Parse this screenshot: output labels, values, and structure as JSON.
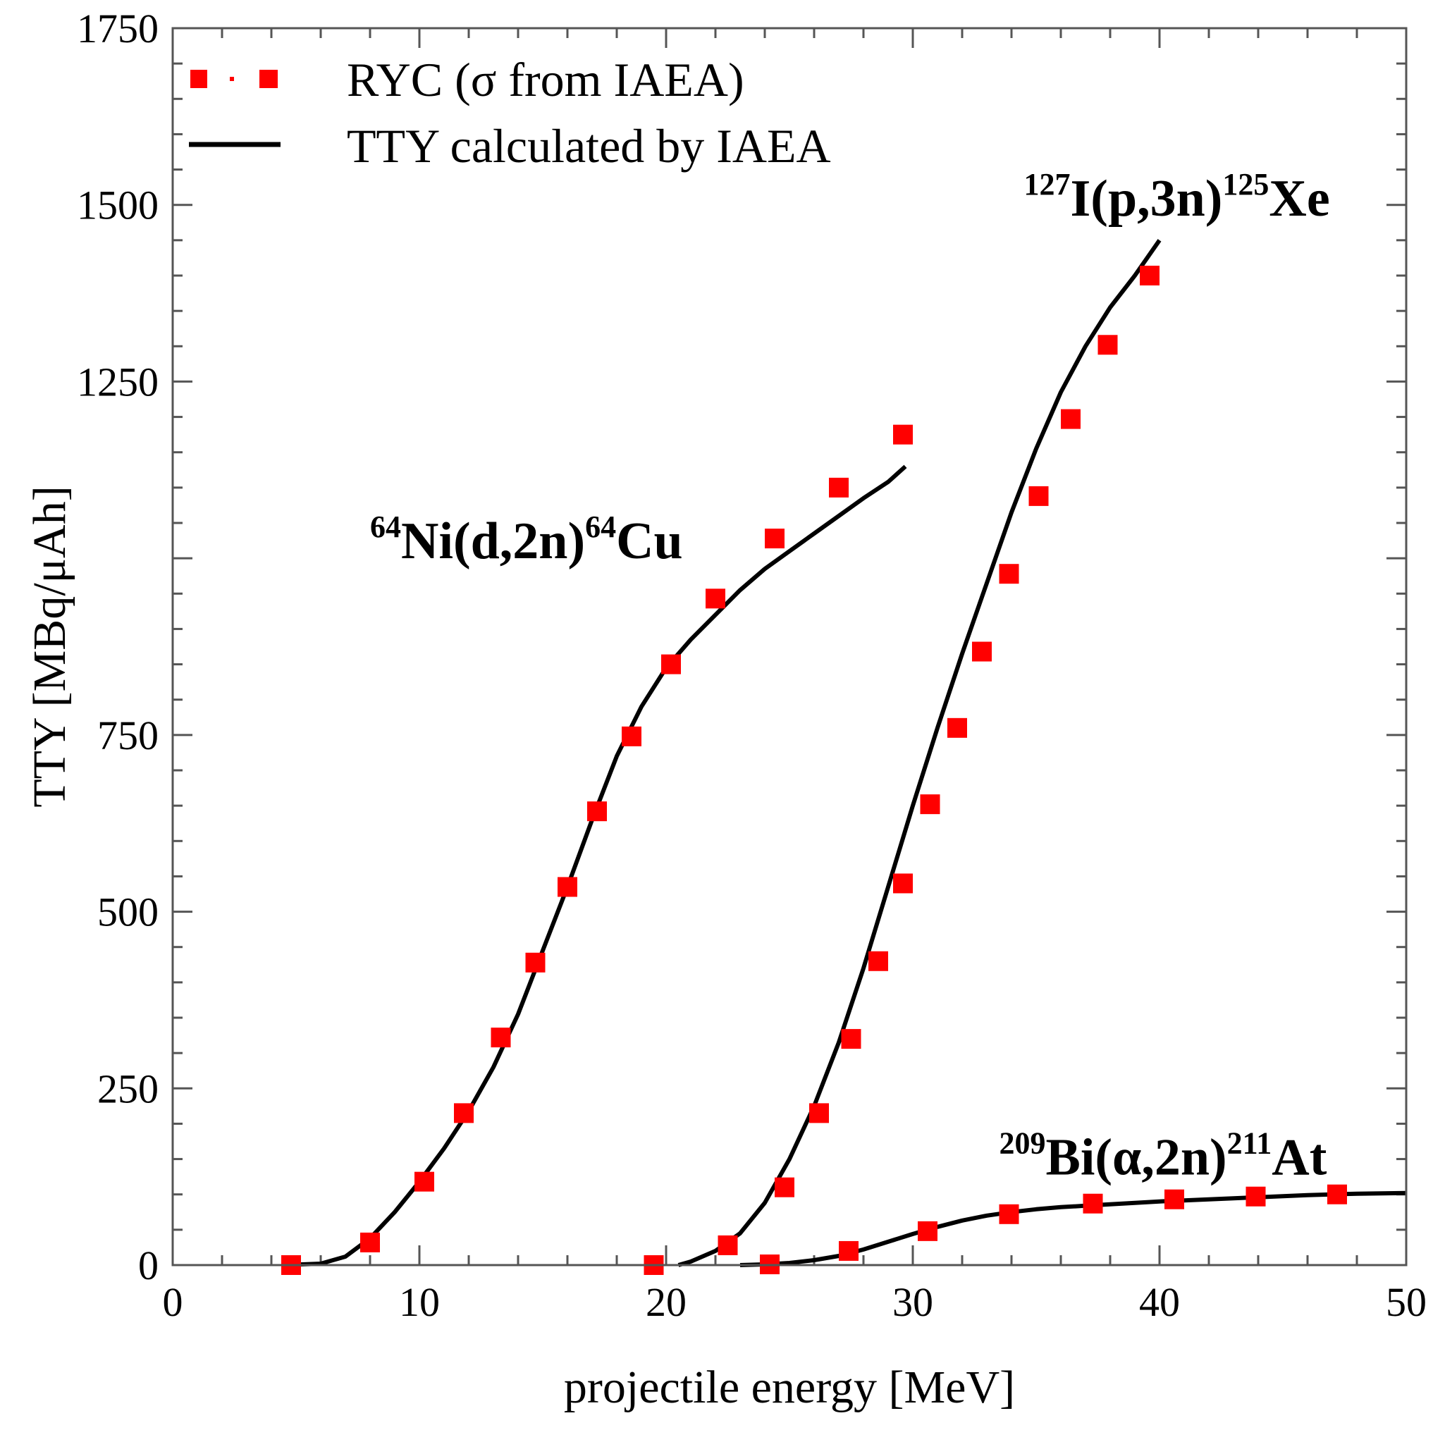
{
  "chart_data": {
    "type": "line",
    "title": "",
    "xlabel": "projectile energy [MeV]",
    "ylabel": "TTY [MBq/μAh]",
    "xlim": [
      0,
      50
    ],
    "ylim": [
      0,
      1750
    ],
    "x_ticks": [
      0,
      10,
      20,
      30,
      40,
      50
    ],
    "y_ticks": [
      0,
      250,
      500,
      750,
      1000,
      1250,
      1500,
      1750
    ],
    "y_tick_labels": [
      "0",
      "250",
      "500",
      "750",
      "",
      "1250",
      "1500",
      "1750"
    ],
    "grid": false,
    "legend": {
      "placement": "top-left",
      "entries": [
        {
          "label": "RYC (σ from IAEA)",
          "style": "red-square-markers",
          "color": "#ff0000"
        },
        {
          "label": "TTY calculated by IAEA",
          "style": "solid-line",
          "color": "#000000"
        }
      ]
    },
    "series": [
      {
        "reaction": "64Ni(d,2n)64Cu",
        "label_parts": {
          "pre_sup": "64",
          "main": "Ni(d,2n)",
          "mid_sup": "64",
          "tail": "Cu"
        },
        "label_anchor": [
          8,
          1000
        ],
        "line": {
          "x": [
            4.5,
            6,
            7,
            8,
            9,
            10,
            11,
            12,
            13,
            14,
            15,
            16,
            17,
            18,
            19,
            20,
            21,
            22,
            23,
            24,
            25,
            26,
            27,
            28,
            29,
            29.7
          ],
          "y": [
            0,
            2,
            12,
            38,
            75,
            118,
            165,
            218,
            280,
            355,
            445,
            535,
            630,
            720,
            790,
            845,
            885,
            920,
            955,
            985,
            1010,
            1035,
            1060,
            1085,
            1108,
            1130
          ]
        },
        "ryc": {
          "x": [
            4.8,
            8.0,
            10.2,
            11.8,
            13.3,
            14.7,
            16.0,
            17.2,
            18.6,
            20.2,
            22.0,
            24.4,
            27.0,
            29.6
          ],
          "y": [
            0,
            32,
            118,
            215,
            322,
            428,
            535,
            642,
            748,
            850,
            943,
            1028,
            1100,
            1175
          ]
        }
      },
      {
        "reaction": "127I(p,3n)125Xe",
        "label_parts": {
          "pre_sup": "127",
          "main": "I(p,3n)",
          "mid_sup": "125",
          "tail": "Xe"
        },
        "label_anchor": [
          34.5,
          1485
        ],
        "line": {
          "x": [
            20.5,
            21,
            22,
            23,
            24,
            25,
            26,
            27,
            28,
            29,
            30,
            31,
            32,
            33,
            34,
            35,
            36,
            37,
            38,
            39,
            40
          ],
          "y": [
            0,
            5,
            20,
            45,
            88,
            150,
            225,
            315,
            420,
            535,
            650,
            760,
            865,
            965,
            1065,
            1155,
            1235,
            1300,
            1355,
            1400,
            1450
          ]
        },
        "ryc": {
          "x": [
            19.5,
            22.5,
            24.8,
            26.2,
            27.5,
            28.6,
            29.6,
            30.7,
            31.8,
            32.8,
            33.9,
            35.1,
            36.4,
            37.9,
            39.6
          ],
          "y": [
            0,
            28,
            110,
            215,
            320,
            430,
            540,
            652,
            760,
            868,
            978,
            1088,
            1197,
            1302,
            1400
          ]
        }
      },
      {
        "reaction": "209Bi(α,2n)211At",
        "label_parts": {
          "pre_sup": "209",
          "main": "Bi(α,2n)",
          "mid_sup": "211",
          "tail": "At"
        },
        "label_anchor": [
          33.5,
          128
        ],
        "line": {
          "x": [
            23,
            24,
            25,
            26,
            27,
            28,
            29,
            30,
            31,
            32,
            33,
            34,
            35,
            36,
            37,
            38,
            40,
            42,
            44,
            46,
            48,
            50
          ],
          "y": [
            0,
            1,
            3,
            7,
            13,
            22,
            33,
            44,
            54,
            63,
            70,
            75,
            79,
            82,
            84,
            86,
            90,
            93,
            96,
            99,
            101,
            102
          ]
        },
        "ryc": {
          "x": [
            24.2,
            27.4,
            30.6,
            33.9,
            37.3,
            40.6,
            43.9,
            47.2
          ],
          "y": [
            1,
            20,
            48,
            72,
            87,
            93,
            97,
            100
          ]
        }
      }
    ]
  }
}
